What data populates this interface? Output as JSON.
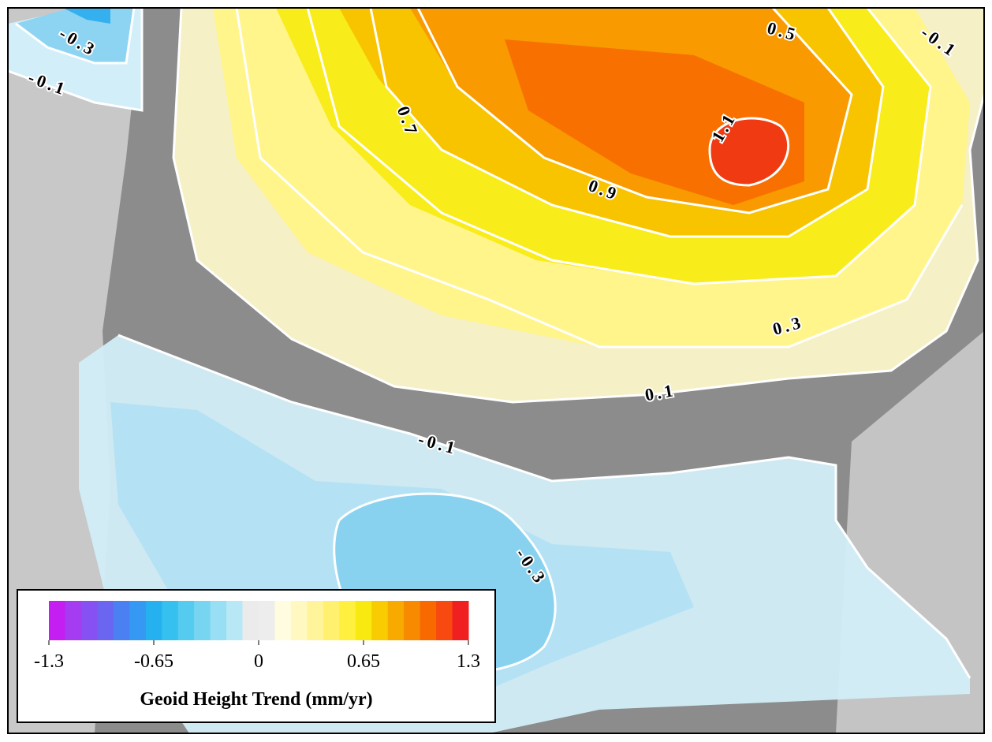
{
  "map": {
    "contour_labels": [
      "-0.3",
      "-0.1",
      "0.5",
      "-0.1",
      "0.7",
      "1.1",
      "0.9",
      "0.3",
      "0.1",
      "-0.1",
      "-0.3"
    ],
    "legend": {
      "title": "Geoid Height Trend (mm/yr)",
      "clim": [
        -1.3,
        1.3
      ],
      "ticks": [
        -1.3,
        -0.65,
        0,
        0.65,
        1.3
      ],
      "colors": [
        "#c41ef2",
        "#a53cf2",
        "#8650f2",
        "#6a66f2",
        "#4a80f2",
        "#3598f2",
        "#25b0f0",
        "#35c0f0",
        "#55cbf0",
        "#78d5f2",
        "#98def4",
        "#b8e8f6",
        "#ebebeb",
        "#ededed",
        "#fffce0",
        "#fff8c0",
        "#fff49a",
        "#fff070",
        "#fff040",
        "#f8ea10",
        "#f8cc00",
        "#f8aa00",
        "#f88a00",
        "#f86a00",
        "#f84a10",
        "#f02020"
      ]
    }
  }
}
